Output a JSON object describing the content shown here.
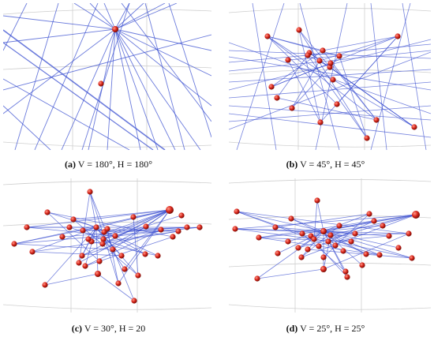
{
  "panels": [
    {
      "letter": "(a)",
      "text": " V = 180°, H = 180°"
    },
    {
      "letter": "(b)",
      "text": " V = 45°, H = 45°"
    },
    {
      "letter": "(c)",
      "text": " V = 30°, H = 20"
    },
    {
      "letter": "(d)",
      "text": " V = 25°, H = 25°"
    }
  ],
  "colors": {
    "edge": "#3a4fd0",
    "node": "#d9271c",
    "grid": "#cfcfcf"
  }
}
